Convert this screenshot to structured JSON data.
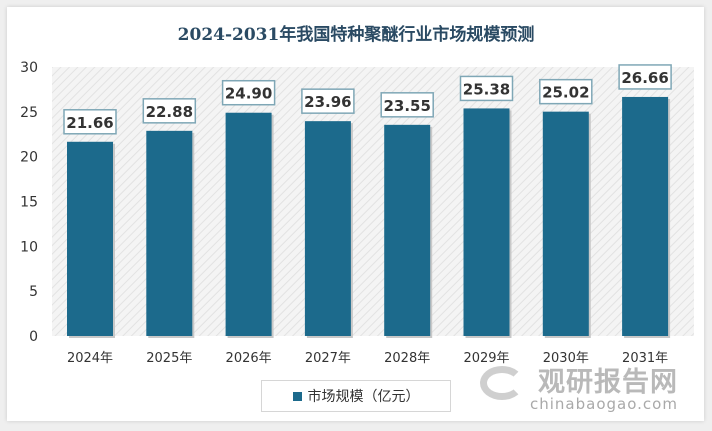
{
  "chart_data": {
    "type": "bar",
    "title": "2024-2031年我国特种聚醚行业市场规模预测",
    "categories": [
      "2024年",
      "2025年",
      "2026年",
      "2027年",
      "2028年",
      "2029年",
      "2030年",
      "2031年"
    ],
    "series": [
      {
        "name": "市场规模（亿元）",
        "values": [
          21.66,
          22.88,
          24.9,
          23.96,
          23.55,
          25.38,
          25.02,
          26.66
        ],
        "labels": [
          "21.66",
          "22.88",
          "24.90",
          "23.96",
          "23.55",
          "25.38",
          "25.02",
          "26.66"
        ],
        "color": "#1c6a8c"
      }
    ],
    "yticks": [
      "0",
      "5",
      "10",
      "15",
      "20",
      "25",
      "30"
    ],
    "ylim": [
      0,
      30
    ],
    "grid": false,
    "legend_position": "bottom-left"
  },
  "watermark": {
    "name": "观研报告网",
    "url": "chinabaogao.com"
  }
}
